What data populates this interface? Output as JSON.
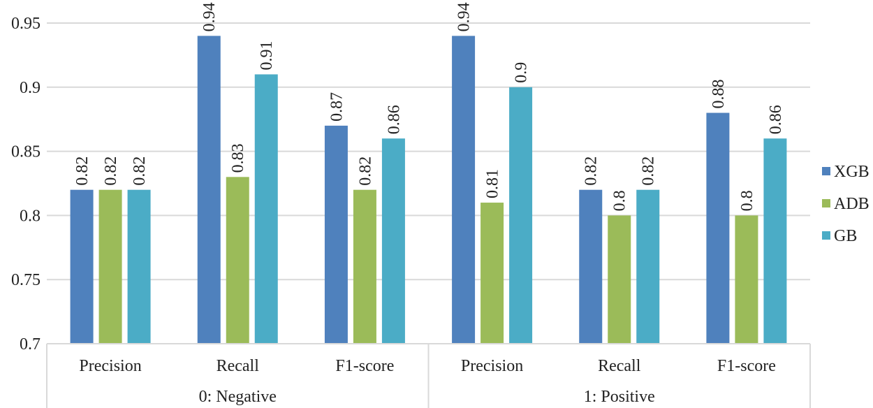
{
  "chart_data": {
    "type": "bar",
    "title": "",
    "xlabel": "",
    "ylabel": "",
    "ylim": [
      0.7,
      0.95
    ],
    "yticks": [
      0.7,
      0.75,
      0.8,
      0.85,
      0.9,
      0.95
    ],
    "ytick_labels": [
      "0.7",
      "0.75",
      "0.8",
      "0.85",
      "0.9",
      "0.95"
    ],
    "grid": true,
    "legend_position": "right",
    "categories": [
      "Precision",
      "Recall",
      "F1-score",
      "Precision",
      "Recall",
      "F1-score"
    ],
    "groups": [
      {
        "label": "0: Negative",
        "span": 3
      },
      {
        "label": "1: Positive",
        "span": 3
      }
    ],
    "series": [
      {
        "name": "XGB",
        "color": "#4F81BD",
        "values": [
          0.82,
          0.94,
          0.87,
          0.94,
          0.82,
          0.88
        ],
        "labels": [
          "0.82",
          "0.94",
          "0.87",
          "0.94",
          "0.82",
          "0.88"
        ]
      },
      {
        "name": "ADB",
        "color": "#9BBB59",
        "values": [
          0.82,
          0.83,
          0.82,
          0.81,
          0.8,
          0.8
        ],
        "labels": [
          "0.82",
          "0.83",
          "0.82",
          "0.81",
          "0.8",
          "0.8"
        ]
      },
      {
        "name": "GB",
        "color": "#4BACC6",
        "values": [
          0.82,
          0.91,
          0.86,
          0.9,
          0.82,
          0.86
        ],
        "labels": [
          "0.82",
          "0.91",
          "0.86",
          "0.9",
          "0.82",
          "0.86"
        ]
      }
    ]
  }
}
